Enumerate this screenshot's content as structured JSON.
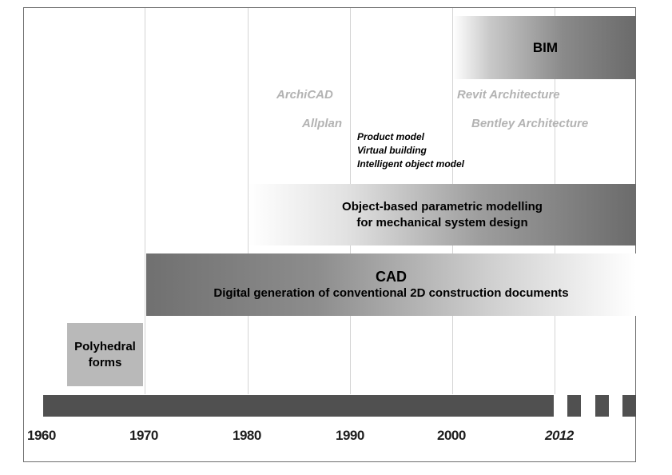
{
  "bands": {
    "bim": "BIM",
    "object_based": {
      "line1": "Object-based parametric modelling",
      "line2": "for mechanical system design"
    },
    "cad": {
      "title": "CAD",
      "subtitle": "Digital generation of conventional 2D construction documents"
    },
    "polyhedral": {
      "line1": "Polyhedral",
      "line2": "forms"
    }
  },
  "software": {
    "archicad": "ArchiCAD",
    "allplan": "Allplan",
    "revit": "Revit Architecture",
    "bentley": "Bentley Architecture"
  },
  "concepts": [
    "Product model",
    "Virtual building",
    "Intelligent object model"
  ],
  "axis": {
    "ticks": [
      "1960",
      "1970",
      "1980",
      "1990",
      "2000"
    ],
    "end_label": "2012"
  },
  "colors": {
    "bar": "#505050",
    "software_text": "#b3b3b3",
    "polyhedral_fill": "#b9b9b9"
  }
}
